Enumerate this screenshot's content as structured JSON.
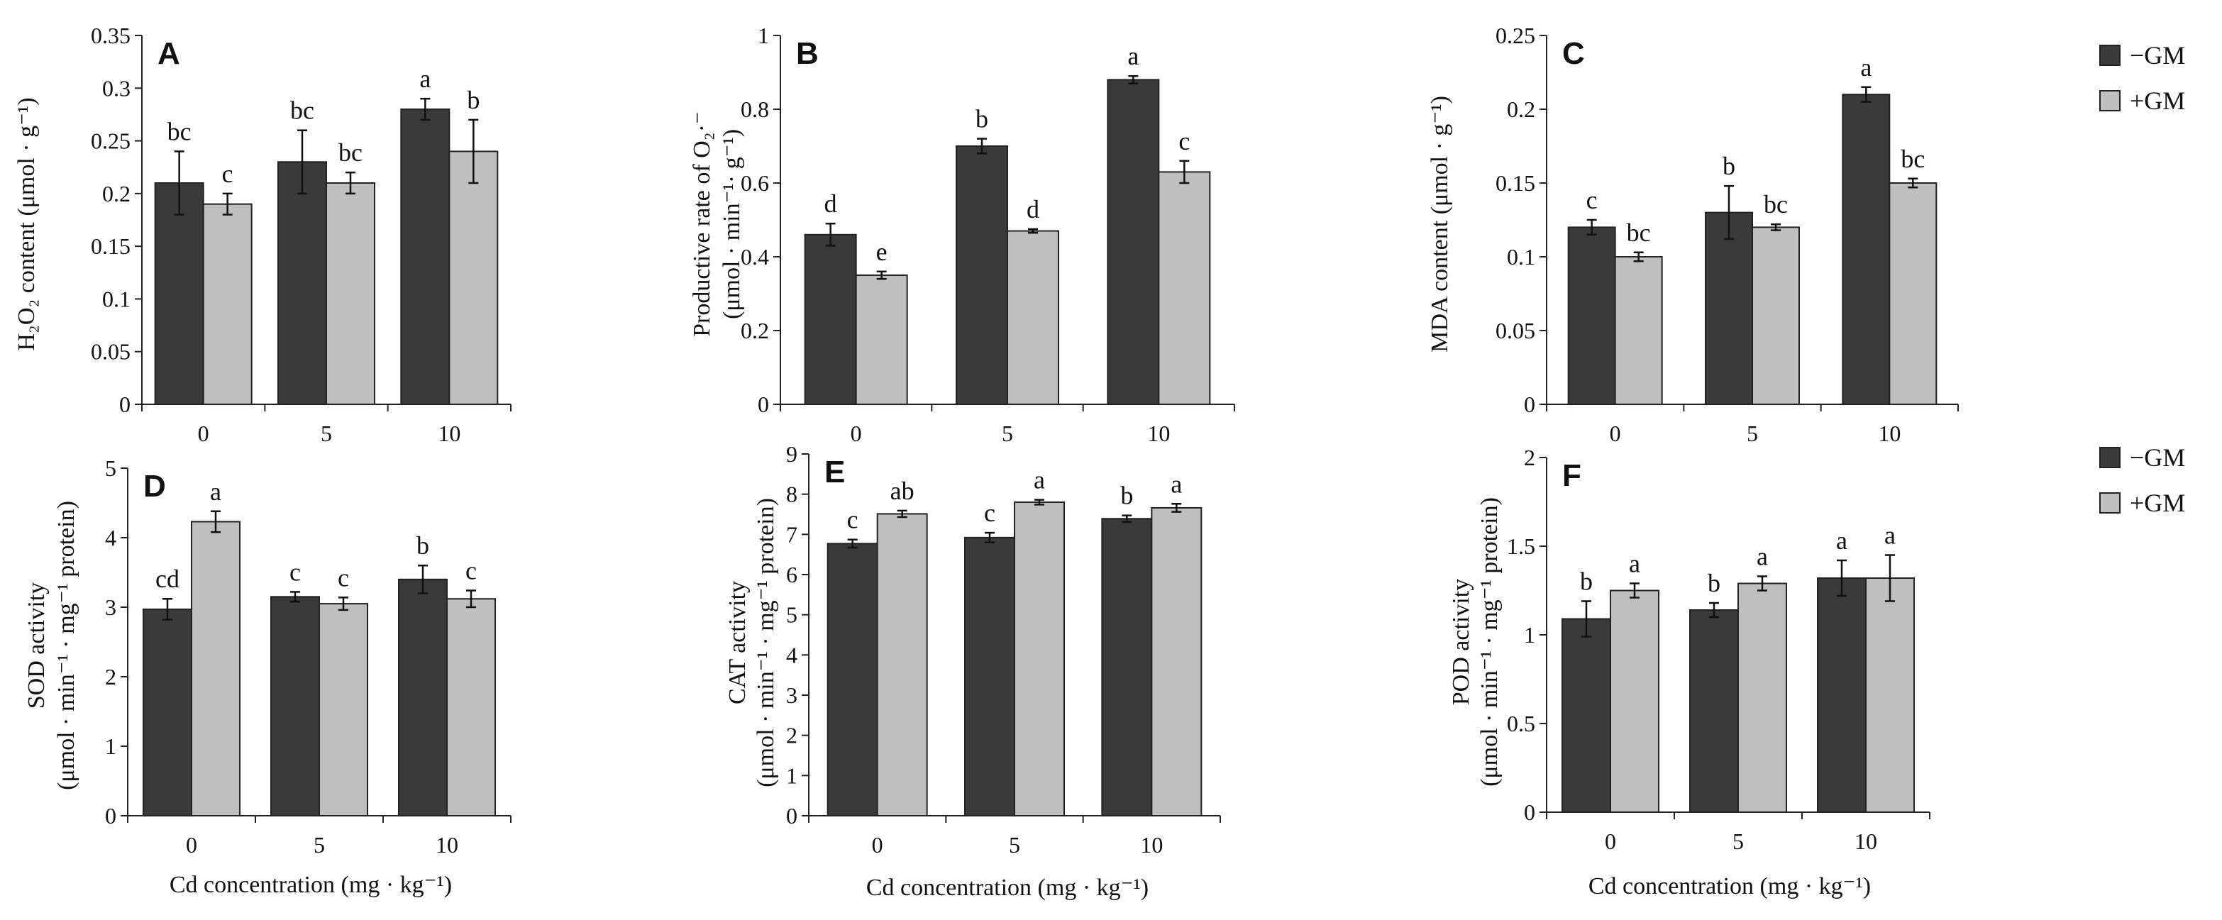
{
  "colors": {
    "minus_gm": "#3a3a3a",
    "plus_gm": "#bfbfbf",
    "axis": "#222222"
  },
  "legend": [
    {
      "label": "−GM",
      "color": "#3a3a3a"
    },
    {
      "label": "+GM",
      "color": "#bfbfbf"
    }
  ],
  "chart_data": [
    {
      "panel": "A",
      "type": "bar",
      "categories": [
        "0",
        "5",
        "10"
      ],
      "ylabel": "H₂O₂ content (μmol · g⁻¹)",
      "xlabel": "",
      "ylim": [
        0,
        0.35
      ],
      "yticks": [
        "0",
        "0.05",
        "0.1",
        "0.15",
        "0.2",
        "0.25",
        "0.3",
        "0.35"
      ],
      "series": [
        {
          "name": "−GM",
          "values": [
            0.21,
            0.23,
            0.28
          ],
          "errors": [
            0.03,
            0.03,
            0.01
          ],
          "letters": [
            "bc",
            "bc",
            "a"
          ]
        },
        {
          "name": "+GM",
          "values": [
            0.19,
            0.21,
            0.24
          ],
          "errors": [
            0.01,
            0.01,
            0.03
          ],
          "letters": [
            "c",
            "bc",
            "b"
          ]
        }
      ]
    },
    {
      "panel": "B",
      "type": "bar",
      "categories": [
        "0",
        "5",
        "10"
      ],
      "ylabel": "Productive rate of O₂·⁻",
      "ylabel2": "(μmol · min⁻¹· g⁻¹)",
      "xlabel": "",
      "ylim": [
        0,
        1
      ],
      "yticks": [
        "0",
        "0.2",
        "0.4",
        "0.6",
        "0.8",
        "1"
      ],
      "series": [
        {
          "name": "−GM",
          "values": [
            0.46,
            0.7,
            0.88
          ],
          "errors": [
            0.03,
            0.02,
            0.01
          ],
          "letters": [
            "d",
            "b",
            "a"
          ]
        },
        {
          "name": "+GM",
          "values": [
            0.35,
            0.47,
            0.63
          ],
          "errors": [
            0.01,
            0.005,
            0.03
          ],
          "letters": [
            "e",
            "d",
            "c"
          ]
        }
      ]
    },
    {
      "panel": "C",
      "type": "bar",
      "categories": [
        "0",
        "5",
        "10"
      ],
      "ylabel": "MDA content (μmol · g⁻¹)",
      "xlabel": "",
      "ylim": [
        0,
        0.25
      ],
      "yticks": [
        "0",
        "0.05",
        "0.1",
        "0.15",
        "0.2",
        "0.25"
      ],
      "series": [
        {
          "name": "−GM",
          "values": [
            0.12,
            0.13,
            0.21
          ],
          "errors": [
            0.005,
            0.018,
            0.005
          ],
          "letters": [
            "c",
            "b",
            "a"
          ]
        },
        {
          "name": "+GM",
          "values": [
            0.1,
            0.12,
            0.15
          ],
          "errors": [
            0.003,
            0.002,
            0.003
          ],
          "letters": [
            "bc",
            "bc",
            "bc"
          ]
        }
      ]
    },
    {
      "panel": "D",
      "type": "bar",
      "categories": [
        "0",
        "5",
        "10"
      ],
      "ylabel": "SOD activity",
      "ylabel2": "(μmol · min⁻¹ · mg⁻¹ protein)",
      "xlabel": "Cd concentration (mg · kg⁻¹)",
      "ylim": [
        0,
        5
      ],
      "yticks": [
        "0",
        "1",
        "2",
        "3",
        "4",
        "5"
      ],
      "series": [
        {
          "name": "−GM",
          "values": [
            2.97,
            3.15,
            3.4
          ],
          "errors": [
            0.15,
            0.07,
            0.2
          ],
          "letters": [
            "cd",
            "c",
            "b"
          ]
        },
        {
          "name": "+GM",
          "values": [
            4.23,
            3.05,
            3.12
          ],
          "errors": [
            0.15,
            0.09,
            0.12
          ],
          "letters": [
            "a",
            "c",
            "c"
          ]
        }
      ]
    },
    {
      "panel": "E",
      "type": "bar",
      "categories": [
        "0",
        "5",
        "10"
      ],
      "ylabel": "CAT activity",
      "ylabel2": "(μmol · min⁻¹ · mg⁻¹ protein)",
      "xlabel": "Cd concentration (mg · kg⁻¹)",
      "ylim": [
        0,
        9
      ],
      "yticks": [
        "0",
        "1",
        "2",
        "3",
        "4",
        "5",
        "6",
        "7",
        "8",
        "9"
      ],
      "series": [
        {
          "name": "−GM",
          "values": [
            6.77,
            6.92,
            7.39
          ],
          "errors": [
            0.1,
            0.12,
            0.08
          ],
          "letters": [
            "c",
            "c",
            "b"
          ]
        },
        {
          "name": "+GM",
          "values": [
            7.51,
            7.8,
            7.66
          ],
          "errors": [
            0.08,
            0.06,
            0.1
          ],
          "letters": [
            "ab",
            "a",
            "a"
          ]
        }
      ]
    },
    {
      "panel": "F",
      "type": "bar",
      "categories": [
        "0",
        "5",
        "10"
      ],
      "ylabel": "POD activity",
      "ylabel2": "(μmol · min⁻¹ · mg⁻¹ protein)",
      "xlabel": "Cd concentration (mg · kg⁻¹)",
      "ylim": [
        0,
        2
      ],
      "yticks": [
        "0",
        "0.5",
        "1",
        "1.5",
        "2"
      ],
      "series": [
        {
          "name": "−GM",
          "values": [
            1.09,
            1.14,
            1.32
          ],
          "errors": [
            0.1,
            0.04,
            0.1
          ],
          "letters": [
            "b",
            "b",
            "a"
          ]
        },
        {
          "name": "+GM",
          "values": [
            1.25,
            1.29,
            1.32
          ],
          "errors": [
            0.04,
            0.04,
            0.13
          ],
          "letters": [
            "a",
            "a",
            "a"
          ]
        }
      ]
    }
  ]
}
